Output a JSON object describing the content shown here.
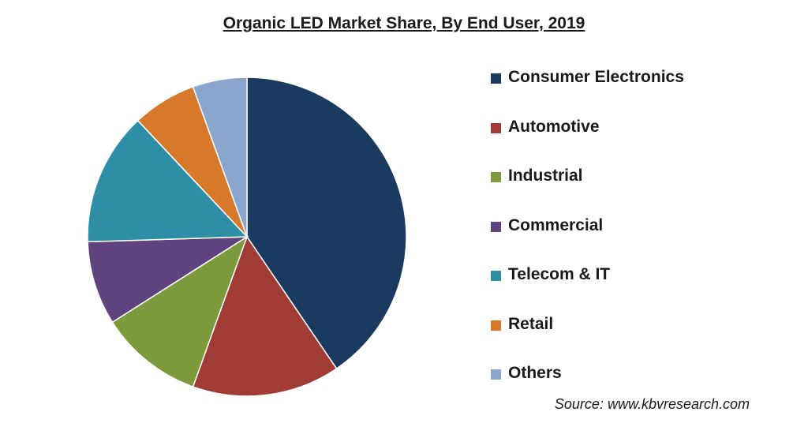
{
  "chart_data": {
    "type": "pie",
    "title": "Organic LED Market Share, By End User, 2019",
    "legend_position": "right",
    "slices": [
      {
        "label": "Consumer Electronics",
        "value": 40.5,
        "color": "#1b3a5f"
      },
      {
        "label": "Automotive",
        "value": 15.0,
        "color": "#a13b35"
      },
      {
        "label": "Industrial",
        "value": 10.5,
        "color": "#7d9a3c"
      },
      {
        "label": "Commercial",
        "value": 8.5,
        "color": "#5e437f"
      },
      {
        "label": "Telecom & IT",
        "value": 13.5,
        "color": "#2d8ea6"
      },
      {
        "label": "Retail",
        "value": 6.5,
        "color": "#d7792b"
      },
      {
        "label": "Others",
        "value": 5.5,
        "color": "#8aa6cc"
      }
    ]
  },
  "source": "Source: www.kbvresearch.com"
}
